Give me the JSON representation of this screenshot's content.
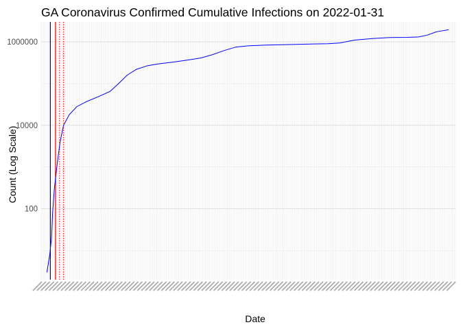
{
  "chart_data": {
    "type": "line",
    "title": "GA Coronavirus Confirmed Cumulative Infections on 2022-01-31",
    "xlabel": "Date",
    "ylabel": "Count (Log Scale)",
    "y_scale": "log10",
    "ylim": [
      2,
      3000000
    ],
    "xlim": [
      "2020-02-21",
      "2022-02-12"
    ],
    "y_ticks": [
      {
        "value": 100,
        "label": "100"
      },
      {
        "value": 10000,
        "label": "10000"
      },
      {
        "value": 1000000,
        "label": "1000000"
      }
    ],
    "grid": true,
    "legend": "none",
    "series": [
      {
        "color": "#0000ff",
        "points": [
          [
            "2020-03-02",
            3
          ],
          [
            "2020-03-07",
            8
          ],
          [
            "2020-03-10",
            20
          ],
          [
            "2020-03-12",
            80
          ],
          [
            "2020-03-15",
            300
          ],
          [
            "2020-03-20",
            1200
          ],
          [
            "2020-03-25",
            4000
          ],
          [
            "2020-03-31",
            10000
          ],
          [
            "2020-04-10",
            18000
          ],
          [
            "2020-04-23",
            28000
          ],
          [
            "2020-05-10",
            37000
          ],
          [
            "2020-05-30",
            48000
          ],
          [
            "2020-06-20",
            65000
          ],
          [
            "2020-07-05",
            100000
          ],
          [
            "2020-07-20",
            160000
          ],
          [
            "2020-08-05",
            220000
          ],
          [
            "2020-08-25",
            270000
          ],
          [
            "2020-09-15",
            300000
          ],
          [
            "2020-10-10",
            330000
          ],
          [
            "2020-11-05",
            370000
          ],
          [
            "2020-11-25",
            410000
          ],
          [
            "2020-12-15",
            490000
          ],
          [
            "2021-01-05",
            620000
          ],
          [
            "2021-01-25",
            750000
          ],
          [
            "2021-02-15",
            800000
          ],
          [
            "2021-03-20",
            840000
          ],
          [
            "2021-05-10",
            870000
          ],
          [
            "2021-06-10",
            890000
          ],
          [
            "2021-07-05",
            900000
          ],
          [
            "2021-07-25",
            940000
          ],
          [
            "2021-08-20",
            1100000
          ],
          [
            "2021-09-20",
            1200000
          ],
          [
            "2021-10-20",
            1270000
          ],
          [
            "2021-11-20",
            1280000
          ],
          [
            "2021-12-10",
            1310000
          ],
          [
            "2021-12-25",
            1450000
          ],
          [
            "2022-01-10",
            1750000
          ],
          [
            "2022-01-31",
            1950000
          ]
        ]
      }
    ],
    "reference_lines": [
      {
        "date": "2020-03-08",
        "color": "#00008b",
        "style": "solid"
      },
      {
        "date": "2020-03-17",
        "color": "#ff0000",
        "style": "solid"
      },
      {
        "date": "2020-03-24",
        "color": "#ff0000",
        "style": "dotted"
      },
      {
        "date": "2020-03-31",
        "color": "#ff0000",
        "style": "dotted"
      }
    ]
  }
}
